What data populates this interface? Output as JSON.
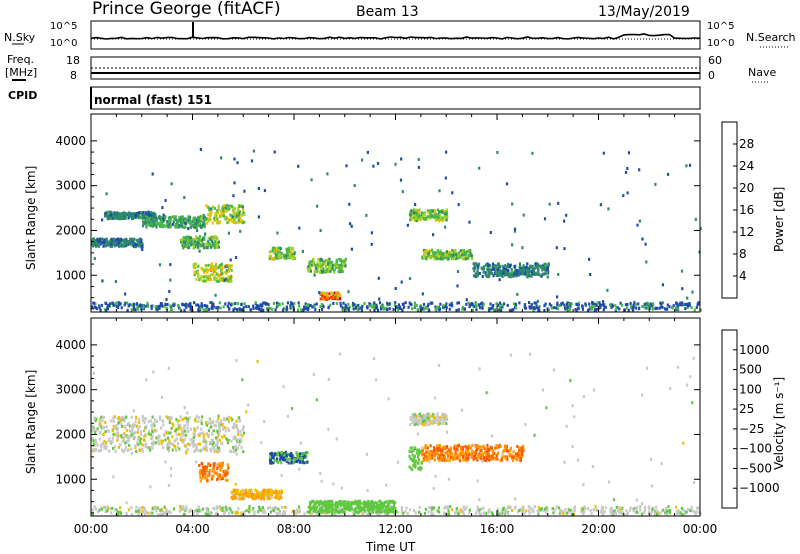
{
  "header": {
    "station": "Prince George (fitACF)",
    "beam": "Beam 13",
    "date": "13/May/2019"
  },
  "strip": {
    "nsky_label": "N.Sky",
    "nsky_ticks": [
      "10^5",
      "10^0"
    ],
    "nsearch_label": "N.Search",
    "nsearch_ticks": [
      "10^5",
      "10^0"
    ],
    "freq_label_1": "Freq.",
    "freq_label_2": "[MHz]",
    "freq_ticks": [
      "18",
      "8"
    ],
    "nave_label": "Nave",
    "nave_ticks": [
      "60",
      "0"
    ],
    "cpid_label": "CPID",
    "cpid_value": "normal (fast) 151"
  },
  "colors": {
    "power": [
      "#0000ff",
      "#1e4aa8",
      "#2e8a6a",
      "#48b848",
      "#a8d020",
      "#f0c000",
      "#ff7f00",
      "#ff3000",
      "#e00000"
    ],
    "velocity": [
      "#ff0000",
      "#ff5a00",
      "#ff9a00",
      "#f0c000",
      "#c8c8c8",
      "#c8c8c8",
      "#60c840",
      "#2e8a6a",
      "#1e4aa8",
      "#2020c0"
    ]
  },
  "chart_data": [
    {
      "type": "heatmap",
      "panel": "power",
      "ylabel": "Slant Range [km]",
      "yticks": [
        "1000",
        "2000",
        "3000",
        "4000"
      ],
      "ylim": [
        180,
        4600
      ],
      "xlim": [
        0,
        24
      ],
      "colorbar_label": "Power [dB]",
      "colorbar_ticks": [
        "4",
        "8",
        "12",
        "16",
        "20",
        "24",
        "28"
      ],
      "colorbar_range": [
        0,
        30
      ],
      "features": [
        {
          "t0": 0.0,
          "t1": 2.0,
          "r0": 1620,
          "r1": 1800,
          "level": 7
        },
        {
          "t0": 0.5,
          "t1": 2.5,
          "r0": 2250,
          "r1": 2400,
          "level": 8
        },
        {
          "t0": 2.0,
          "t1": 4.5,
          "r0": 2050,
          "r1": 2300,
          "level": 11
        },
        {
          "t0": 3.5,
          "t1": 5.0,
          "r0": 1600,
          "r1": 1850,
          "level": 13
        },
        {
          "t0": 4.5,
          "t1": 6.0,
          "r0": 2150,
          "r1": 2550,
          "level": 17
        },
        {
          "t0": 4.0,
          "t1": 5.5,
          "r0": 850,
          "r1": 1250,
          "level": 18
        },
        {
          "t0": 7.0,
          "t1": 8.0,
          "r0": 1350,
          "r1": 1600,
          "level": 15
        },
        {
          "t0": 8.5,
          "t1": 10.0,
          "r0": 1050,
          "r1": 1350,
          "level": 14
        },
        {
          "t0": 9.0,
          "t1": 9.8,
          "r0": 450,
          "r1": 600,
          "level": 28
        },
        {
          "t0": 12.5,
          "t1": 14.0,
          "r0": 2200,
          "r1": 2450,
          "level": 15
        },
        {
          "t0": 13.0,
          "t1": 15.0,
          "r0": 1350,
          "r1": 1550,
          "level": 15
        },
        {
          "t0": 15.0,
          "t1": 18.0,
          "r0": 950,
          "r1": 1250,
          "level": 8
        }
      ]
    },
    {
      "type": "heatmap",
      "panel": "velocity",
      "ylabel": "Slant Range [km]",
      "xlabel": "Time UT",
      "yticks": [
        "1000",
        "2000",
        "3000",
        "4000"
      ],
      "xticks": [
        "00:00",
        "04:00",
        "08:00",
        "12:00",
        "16:00",
        "20:00",
        "00:00"
      ],
      "ylim": [
        180,
        4600
      ],
      "xlim": [
        0,
        24
      ],
      "colorbar_label": "Velocity [m s⁻¹]",
      "colorbar_ticks": [
        "1000",
        "500",
        "100",
        "25",
        "−25",
        "−100",
        "−500",
        "−1000"
      ],
      "features": [
        {
          "t0": 0.0,
          "t1": 6.0,
          "r0": 1600,
          "r1": 2400,
          "velocity": 0
        },
        {
          "t0": 4.2,
          "t1": 5.4,
          "r0": 950,
          "r1": 1350,
          "velocity": -300
        },
        {
          "t0": 5.5,
          "t1": 7.5,
          "r0": 550,
          "r1": 750,
          "velocity": -60
        },
        {
          "t0": 7.0,
          "t1": 8.5,
          "r0": 1350,
          "r1": 1600,
          "velocity": 300
        },
        {
          "t0": 8.5,
          "t1": 12.0,
          "r0": 250,
          "r1": 500,
          "velocity": 150
        },
        {
          "t0": 12.5,
          "t1": 13.0,
          "r0": 1200,
          "r1": 1700,
          "velocity": 150
        },
        {
          "t0": 13.0,
          "t1": 17.0,
          "r0": 1400,
          "r1": 1750,
          "velocity": -300
        },
        {
          "t0": 12.5,
          "t1": 14.0,
          "r0": 2200,
          "r1": 2450,
          "velocity": 0
        }
      ]
    }
  ]
}
